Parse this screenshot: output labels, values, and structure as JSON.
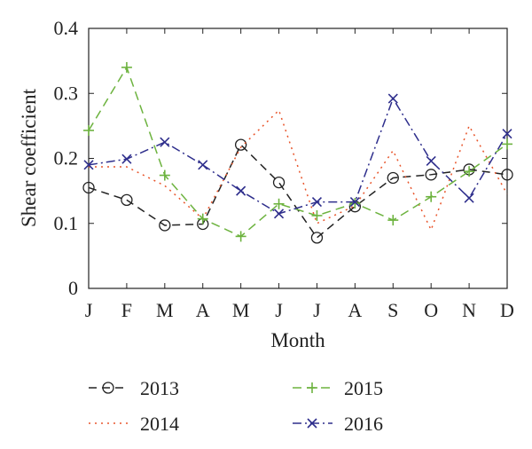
{
  "chart_data": {
    "type": "line",
    "xlabel": "Month",
    "ylabel": "Shear coefficient",
    "categories": [
      "J",
      "F",
      "M",
      "A",
      "M",
      "J",
      "J",
      "A",
      "S",
      "O",
      "N",
      "D"
    ],
    "ylim": [
      0,
      0.4
    ],
    "yticks": [
      "0",
      "0.1",
      "0.2",
      "0.3",
      "0.4"
    ],
    "ytick_values": [
      0,
      0.1,
      0.2,
      0.3,
      0.4
    ],
    "grid": false,
    "legend_position": "bottom",
    "series": [
      {
        "name": "2013",
        "values": [
          0.155,
          0.136,
          0.097,
          0.099,
          0.221,
          0.163,
          0.078,
          0.126,
          0.17,
          0.175,
          0.183,
          0.175
        ],
        "color": "#222222",
        "dash": "9,6",
        "marker": "circle"
      },
      {
        "name": "2014",
        "values": [
          0.187,
          0.187,
          0.158,
          0.107,
          0.217,
          0.274,
          0.1,
          0.127,
          0.212,
          0.09,
          0.25,
          0.145
        ],
        "color": "#e8552b",
        "dash": "2,5",
        "marker": "none"
      },
      {
        "name": "2015",
        "values": [
          0.243,
          0.34,
          0.174,
          0.107,
          0.08,
          0.13,
          0.112,
          0.131,
          0.105,
          0.141,
          0.18,
          0.222
        ],
        "color": "#6db33f",
        "dash": "10,6",
        "marker": "plus"
      },
      {
        "name": "2016",
        "values": [
          0.19,
          0.199,
          0.225,
          0.19,
          0.15,
          0.115,
          0.133,
          0.133,
          0.292,
          0.196,
          0.139,
          0.238
        ],
        "color": "#2e2e8c",
        "dash": "10,4,2,4",
        "marker": "x"
      }
    ]
  }
}
